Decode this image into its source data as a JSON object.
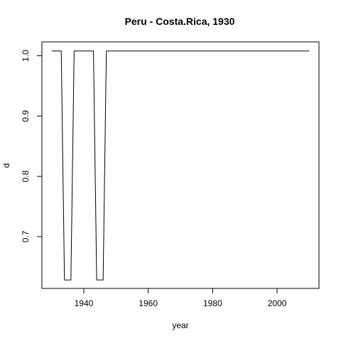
{
  "chart_data": {
    "type": "line",
    "title": "Peru - Costa.Rica, 1930",
    "xlabel": "year",
    "ylabel": "d",
    "xlim": [
      1927,
      2013
    ],
    "ylim": [
      0.614,
      1.023
    ],
    "xticks": [
      1940,
      1960,
      1980,
      2000
    ],
    "yticks": [
      0.7,
      0.8,
      0.9,
      1.0
    ],
    "grid": false,
    "colors": {
      "line": "#000000",
      "frame": "#000000",
      "background": "#ffffff"
    },
    "series": [
      {
        "x": [
          1930,
          1933,
          1934,
          1936,
          1937,
          1943,
          1944,
          1946,
          1947,
          2010
        ],
        "y": [
          1.008,
          1.008,
          0.628,
          0.628,
          1.008,
          1.008,
          0.628,
          0.628,
          1.008,
          1.008
        ]
      }
    ]
  }
}
